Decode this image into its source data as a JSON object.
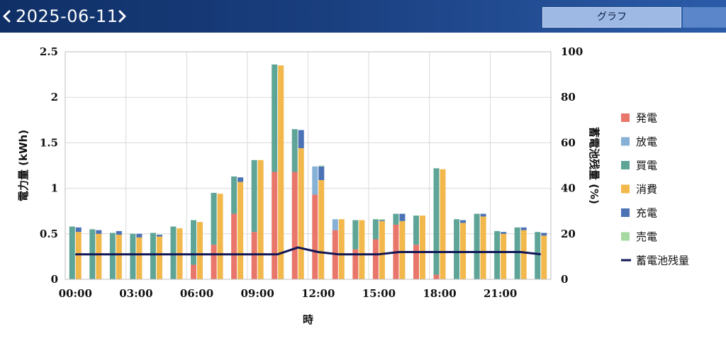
{
  "header": {
    "date": "2025-06-11",
    "graph_tab_label": "グラフ"
  },
  "colors": {
    "generation": "#e8766a",
    "discharge": "#86b0d6",
    "purchase": "#5ea597",
    "consumption": "#f2b84b",
    "charge": "#4a72b4",
    "sale": "#a6d8a2",
    "battery": "#101657"
  },
  "chart_data": {
    "type": "bar",
    "xlabel": "時",
    "ylabel": "電力量 (kWh)",
    "y2label": "蓄電池残量 (%)",
    "ylim": [
      0,
      2.5
    ],
    "y2lim": [
      0,
      100
    ],
    "yticks": [
      "0",
      "0.5",
      "1",
      "1.5",
      "2",
      "2.5"
    ],
    "y2ticks": [
      "0",
      "20",
      "40",
      "60",
      "80",
      "100"
    ],
    "xticks": [
      "00:00",
      "03:00",
      "06:00",
      "09:00",
      "12:00",
      "15:00",
      "18:00",
      "21:00"
    ],
    "grid": true,
    "legend_position": "right",
    "hours": [
      "00:00",
      "01:00",
      "02:00",
      "03:00",
      "04:00",
      "05:00",
      "06:00",
      "07:00",
      "08:00",
      "09:00",
      "10:00",
      "11:00",
      "12:00",
      "13:00",
      "14:00",
      "15:00",
      "16:00",
      "17:00",
      "18:00",
      "19:00",
      "20:00",
      "21:00",
      "22:00",
      "23:00"
    ],
    "legend": [
      {
        "key": "generation",
        "label": "発電",
        "kind": "square"
      },
      {
        "key": "discharge",
        "label": "放電",
        "kind": "square"
      },
      {
        "key": "purchase",
        "label": "買電",
        "kind": "square"
      },
      {
        "key": "consumption",
        "label": "消費",
        "kind": "square"
      },
      {
        "key": "charge",
        "label": "充電",
        "kind": "square"
      },
      {
        "key": "sale",
        "label": "売電",
        "kind": "square"
      },
      {
        "key": "battery",
        "label": "蓄電池残量",
        "kind": "line"
      }
    ],
    "supply_stack": {
      "generation": [
        0,
        0,
        0,
        0,
        0,
        0,
        0.16,
        0.38,
        0.72,
        0.52,
        1.18,
        1.18,
        0.93,
        0.54,
        0.33,
        0.44,
        0.6,
        0.38,
        0.05,
        0,
        0,
        0,
        0,
        0
      ],
      "discharge": [
        0,
        0,
        0,
        0,
        0,
        0,
        0,
        0,
        0,
        0,
        0,
        0,
        0.31,
        0.12,
        0,
        0,
        0,
        0,
        0,
        0,
        0,
        0,
        0,
        0
      ],
      "purchase": [
        0.58,
        0.55,
        0.51,
        0.5,
        0.51,
        0.58,
        0.49,
        0.57,
        0.41,
        0.79,
        1.18,
        0.47,
        0,
        0,
        0.32,
        0.22,
        0.12,
        0.32,
        1.17,
        0.66,
        0.72,
        0.53,
        0.57,
        0.52
      ]
    },
    "demand_stack": {
      "consumption": [
        0.52,
        0.5,
        0.49,
        0.46,
        0.47,
        0.56,
        0.63,
        0.94,
        1.07,
        1.31,
        2.35,
        1.44,
        1.09,
        0.66,
        0.65,
        0.64,
        0.64,
        0.7,
        1.21,
        0.62,
        0.69,
        0.5,
        0.54,
        0.48
      ],
      "charge": [
        0.05,
        0.04,
        0.04,
        0.04,
        0.02,
        0,
        0,
        0,
        0.05,
        0,
        0,
        0.2,
        0.15,
        0,
        0,
        0.01,
        0.08,
        0,
        0,
        0.03,
        0.03,
        0.02,
        0.03,
        0.03
      ],
      "sale": [
        0,
        0,
        0,
        0,
        0,
        0,
        0,
        0,
        0,
        0,
        0,
        0,
        0.01,
        0,
        0,
        0.01,
        0,
        0,
        0,
        0,
        0,
        0,
        0,
        0
      ]
    },
    "battery_percent": [
      11,
      11,
      11,
      11,
      11,
      11,
      11,
      11,
      11,
      11,
      11,
      14,
      12,
      11,
      11,
      11,
      12,
      12,
      12,
      12,
      12,
      12,
      12,
      11
    ]
  }
}
